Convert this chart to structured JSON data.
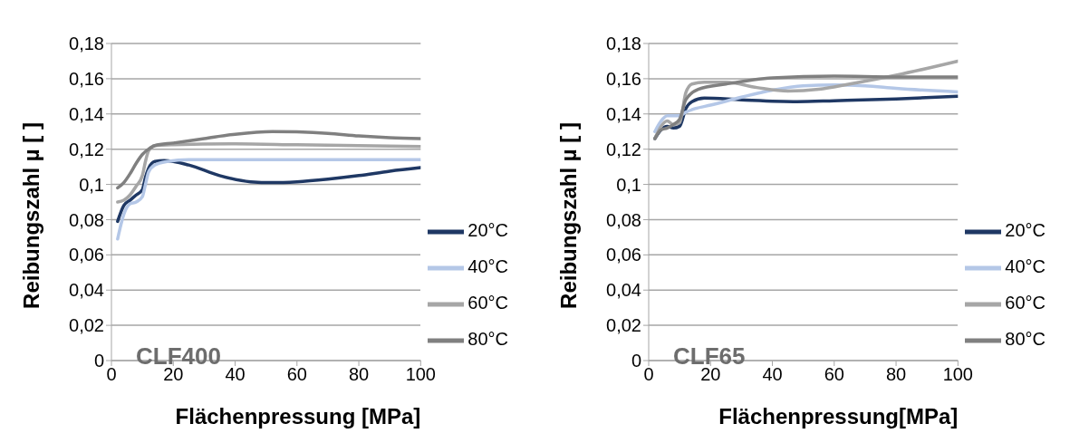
{
  "chart_data": [
    {
      "type": "line",
      "xlabel": "Flächenpressung [MPa]",
      "ylabel": "Reibungszahl µ [ ]",
      "annotations": [
        "CLF400"
      ],
      "xlim": [
        0,
        100
      ],
      "xticks": [
        0,
        20,
        40,
        60,
        80,
        100
      ],
      "ylim": [
        0,
        0.18
      ],
      "yticks": [
        0,
        {
          "value": 0.02,
          "label": "0,02"
        },
        {
          "value": 0.04,
          "label": "0,04"
        },
        {
          "value": 0.06,
          "label": "0,06"
        },
        {
          "value": 0.08,
          "label": "0,08"
        },
        {
          "value": 0.1,
          "label": "0,1"
        },
        {
          "value": 0.12,
          "label": "0,12"
        },
        {
          "value": 0.14,
          "label": "0,14"
        },
        {
          "value": 0.16,
          "label": "0,16"
        },
        {
          "value": 0.18,
          "label": "0,18"
        }
      ],
      "grid": "y",
      "legend": "bottom right",
      "marker": "none",
      "line_style": "solid",
      "series": [
        {
          "name": "20°C",
          "color": "#1f3864",
          "x": [
            2,
            4,
            6,
            8,
            10,
            11,
            12,
            14,
            17,
            25,
            35,
            45,
            52,
            60,
            70,
            80,
            90,
            100
          ],
          "values": [
            0.079,
            0.088,
            0.091,
            0.094,
            0.097,
            0.104,
            0.109,
            0.113,
            0.1135,
            0.111,
            0.105,
            0.1015,
            0.101,
            0.1015,
            0.103,
            0.105,
            0.1075,
            0.1095
          ]
        },
        {
          "name": "40°C",
          "color": "#b4c7e7",
          "x": [
            2,
            4,
            6,
            8,
            10,
            11,
            12,
            14,
            18,
            25,
            50,
            100
          ],
          "values": [
            0.069,
            0.083,
            0.089,
            0.09,
            0.093,
            0.1,
            0.107,
            0.111,
            0.113,
            0.114,
            0.114,
            0.114
          ]
        },
        {
          "name": "60°C",
          "color": "#a6a6a6",
          "x": [
            2,
            4,
            6,
            8,
            10,
            11,
            12,
            14,
            20,
            40,
            60,
            80,
            100
          ],
          "values": [
            0.09,
            0.091,
            0.094,
            0.099,
            0.105,
            0.113,
            0.119,
            0.122,
            0.1225,
            0.123,
            0.1225,
            0.122,
            0.1215
          ]
        },
        {
          "name": "80°C",
          "color": "#808080",
          "x": [
            2,
            4,
            6,
            8,
            10,
            12,
            14,
            20,
            30,
            40,
            52,
            60,
            70,
            80,
            90,
            100
          ],
          "values": [
            0.098,
            0.101,
            0.106,
            0.112,
            0.117,
            0.12,
            0.122,
            0.1235,
            0.126,
            0.1285,
            0.13,
            0.1298,
            0.129,
            0.1275,
            0.1265,
            0.126
          ]
        }
      ]
    },
    {
      "type": "line",
      "xlabel": "Flächenpressung[MPa]",
      "ylabel": "Reibungszahl µ [ ]",
      "annotations": [
        "CLF65"
      ],
      "xlim": [
        0,
        100
      ],
      "xticks": [
        0,
        20,
        40,
        60,
        80,
        100
      ],
      "ylim": [
        0,
        0.18
      ],
      "yticks": [
        0,
        {
          "value": 0.02,
          "label": "0,02"
        },
        {
          "value": 0.04,
          "label": "0,04"
        },
        {
          "value": 0.06,
          "label": "0,06"
        },
        {
          "value": 0.08,
          "label": "0,08"
        },
        {
          "value": 0.1,
          "label": "0,1"
        },
        {
          "value": 0.12,
          "label": "0,12"
        },
        {
          "value": 0.14,
          "label": "0,14"
        },
        {
          "value": 0.16,
          "label": "0,16"
        },
        {
          "value": 0.18,
          "label": "0,18"
        }
      ],
      "grid": "y",
      "legend": "bottom right",
      "marker": "none",
      "line_style": "solid",
      "series": [
        {
          "name": "20°C",
          "color": "#1f3864",
          "x": [
            2,
            4,
            6,
            8,
            10,
            12,
            14,
            18,
            30,
            48,
            60,
            80,
            100
          ],
          "values": [
            0.126,
            0.131,
            0.133,
            0.132,
            0.133,
            0.143,
            0.147,
            0.149,
            0.148,
            0.147,
            0.1475,
            0.1485,
            0.15
          ]
        },
        {
          "name": "40°C",
          "color": "#b4c7e7",
          "x": [
            2,
            4,
            6,
            10,
            12,
            15,
            20,
            30,
            40,
            50,
            60,
            70,
            80,
            100
          ],
          "values": [
            0.13,
            0.136,
            0.139,
            0.139,
            0.141,
            0.143,
            0.145,
            0.1495,
            0.1535,
            0.156,
            0.1565,
            0.156,
            0.1545,
            0.1525
          ]
        },
        {
          "name": "60°C",
          "color": "#a6a6a6",
          "x": [
            2,
            4,
            6,
            8,
            10,
            12,
            14,
            18,
            25,
            35,
            45,
            55,
            65,
            80,
            100
          ],
          "values": [
            0.126,
            0.133,
            0.136,
            0.134,
            0.135,
            0.152,
            0.157,
            0.158,
            0.158,
            0.155,
            0.153,
            0.154,
            0.157,
            0.162,
            0.17
          ]
        },
        {
          "name": "80°C",
          "color": "#808080",
          "x": [
            2,
            4,
            6,
            8,
            10,
            12,
            16,
            25,
            40,
            60,
            80,
            100
          ],
          "values": [
            0.126,
            0.131,
            0.132,
            0.134,
            0.137,
            0.148,
            0.154,
            0.157,
            0.1605,
            0.1615,
            0.161,
            0.161
          ]
        }
      ]
    }
  ]
}
